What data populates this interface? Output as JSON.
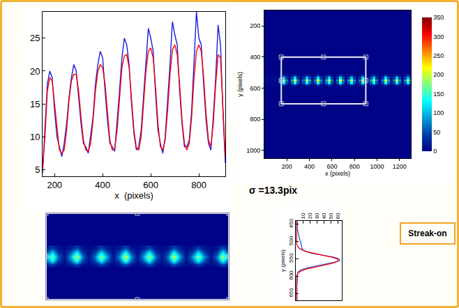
{
  "chart_data": [
    {
      "type": "line",
      "xlabel": "x  (pixels)",
      "x": [
        150,
        160,
        170,
        180,
        190,
        200,
        210,
        220,
        230,
        240,
        250,
        260,
        270,
        280,
        290,
        300,
        310,
        320,
        330,
        340,
        350,
        360,
        370,
        380,
        390,
        400,
        410,
        420,
        430,
        440,
        450,
        460,
        470,
        480,
        490,
        500,
        510,
        520,
        530,
        540,
        550,
        560,
        570,
        580,
        590,
        600,
        610,
        620,
        630,
        640,
        650,
        660,
        670,
        680,
        690,
        700,
        710,
        720,
        730,
        740,
        750,
        760,
        770,
        780,
        790,
        800,
        810,
        820,
        830,
        840,
        850,
        860,
        870,
        880,
        890,
        900,
        910
      ],
      "series": [
        {
          "color": "#1a1ae0",
          "values": [
            4.5,
            11,
            18,
            20,
            19,
            14,
            10,
            8.5,
            7,
            9,
            12,
            16,
            19,
            21,
            20,
            16,
            12,
            9,
            8.5,
            7.5,
            10,
            13,
            18,
            21,
            23,
            22,
            17,
            12.5,
            9,
            8.5,
            7.8,
            12,
            17,
            22,
            25,
            24,
            21,
            15,
            10.5,
            8,
            8.5,
            11,
            16,
            22,
            26.5,
            25,
            23,
            16.5,
            11,
            9,
            7.5,
            10,
            15,
            21,
            27.5,
            25.5,
            24,
            17,
            12,
            8.5,
            8.5,
            9.5,
            14,
            21,
            29,
            25,
            24,
            18,
            12.5,
            9,
            8,
            13,
            19,
            27,
            24,
            14,
            6
          ]
        },
        {
          "color": "#ff0000",
          "values": [
            5,
            10,
            17,
            19,
            18.5,
            15,
            11,
            8,
            7.5,
            8,
            11,
            15.5,
            18.5,
            19.5,
            19.5,
            17,
            13,
            9.5,
            8,
            7.8,
            9,
            12.5,
            17,
            20,
            21,
            20.5,
            18,
            13.5,
            9.5,
            8,
            8.2,
            11,
            16,
            20.5,
            22.3,
            22.5,
            20.5,
            16,
            11,
            8.3,
            8,
            10,
            15,
            20,
            23,
            23.5,
            22,
            17.5,
            12,
            8.5,
            8,
            9.5,
            14,
            19.5,
            23.2,
            24,
            22.5,
            18,
            12.5,
            9,
            8,
            9,
            13,
            19,
            23,
            24,
            23,
            19,
            13.5,
            9.5,
            8.5,
            12,
            18,
            22.5,
            22,
            15,
            7
          ]
        }
      ],
      "xlim": [
        150,
        910
      ],
      "xticks": [
        200,
        400,
        600,
        800
      ],
      "ylim": [
        4,
        29
      ],
      "yticks": [
        5,
        10,
        15,
        20,
        25
      ],
      "grid": false
    },
    {
      "type": "heatmap",
      "xlabel": "x (pixels)",
      "ylabel": "y (pixels)",
      "x": [
        0,
        25,
        50,
        75,
        100,
        125,
        150,
        175,
        200,
        225,
        250,
        275,
        300,
        325,
        350,
        375,
        400,
        425,
        450,
        475,
        500,
        525,
        550,
        575,
        600,
        625,
        650,
        675,
        700,
        725,
        750,
        775,
        800,
        825,
        850,
        875,
        900,
        925,
        950,
        975,
        1000,
        1025,
        1050,
        1075,
        1100,
        1125,
        1150,
        1175,
        1200,
        1225,
        1250,
        1275,
        1300,
        1325,
        1350
      ],
      "y": [
        520,
        535,
        550,
        565,
        580
      ],
      "z": [
        [
          5,
          6,
          4,
          7,
          5,
          6,
          14,
          38,
          12,
          6,
          16,
          45,
          13,
          5,
          12,
          40,
          18,
          7,
          15,
          48,
          14,
          6,
          18,
          42,
          12,
          5,
          13,
          46,
          16,
          6,
          14,
          36,
          13,
          7,
          12,
          44,
          15,
          5,
          17,
          40,
          12,
          6,
          14,
          47,
          18,
          7,
          13,
          39,
          14,
          5,
          15,
          35,
          12,
          6,
          5
        ],
        [
          6,
          8,
          5,
          7,
          9,
          8,
          40,
          105,
          35,
          10,
          50,
          120,
          38,
          9,
          35,
          110,
          52,
          11,
          45,
          125,
          40,
          10,
          55,
          115,
          35,
          9,
          38,
          120,
          48,
          10,
          42,
          108,
          40,
          11,
          35,
          118,
          45,
          9,
          50,
          110,
          38,
          10,
          40,
          122,
          50,
          11,
          36,
          112,
          42,
          9,
          45,
          105,
          36,
          8,
          6
        ],
        [
          7,
          9,
          6,
          8,
          10,
          12,
          85,
          175,
          70,
          14,
          90,
          200,
          75,
          12,
          70,
          185,
          95,
          15,
          80,
          210,
          85,
          13,
          95,
          190,
          70,
          14,
          75,
          205,
          90,
          12,
          85,
          180,
          80,
          15,
          70,
          195,
          85,
          13,
          90,
          185,
          75,
          12,
          80,
          200,
          90,
          14,
          75,
          190,
          80,
          12,
          85,
          180,
          70,
          10,
          8
        ],
        [
          7,
          6,
          8,
          9,
          7,
          10,
          55,
          130,
          45,
          12,
          60,
          140,
          50,
          10,
          48,
          125,
          62,
          11,
          52,
          145,
          58,
          12,
          62,
          130,
          45,
          10,
          50,
          140,
          58,
          12,
          55,
          128,
          52,
          11,
          45,
          135,
          55,
          10,
          60,
          125,
          48,
          12,
          52,
          138,
          60,
          11,
          48,
          130,
          50,
          10,
          56,
          122,
          44,
          9,
          7
        ],
        [
          4,
          5,
          6,
          4,
          5,
          7,
          12,
          32,
          10,
          5,
          14,
          38,
          11,
          6,
          10,
          34,
          15,
          5,
          13,
          40,
          12,
          6,
          15,
          36,
          10,
          5,
          11,
          39,
          14,
          6,
          12,
          30,
          11,
          5,
          10,
          37,
          13,
          6,
          14,
          33,
          10,
          5,
          12,
          40,
          15,
          6,
          11,
          32,
          12,
          5,
          13,
          30,
          10,
          5,
          4
        ]
      ],
      "color": "jet",
      "colorbar": {
        "range": [
          0,
          350
        ],
        "ticks": [
          0,
          50,
          100,
          150,
          200,
          250,
          300,
          350
        ]
      },
      "roi": {
        "x": [
          150,
          900
        ],
        "y": [
          400,
          700
        ]
      },
      "xlim": [
        0,
        1300
      ],
      "xticks": [
        200,
        400,
        600,
        800,
        1000,
        1200
      ],
      "ylim": [
        1050,
        100
      ],
      "yticks": [
        200,
        400,
        600,
        800,
        1000
      ]
    },
    {
      "type": "heatmap",
      "xlim": [
        150,
        900
      ],
      "ylim": [
        700,
        400
      ],
      "tick_labels": false
    },
    {
      "type": "line",
      "orientation": "horizontal",
      "ylabel": "y (pixels)",
      "y": [
        440,
        450,
        460,
        470,
        480,
        490,
        500,
        505,
        510,
        515,
        520,
        525,
        530,
        535,
        540,
        545,
        550,
        555,
        560,
        565,
        570,
        575,
        580,
        585,
        590,
        595,
        600,
        610,
        620,
        630,
        640,
        650,
        660,
        670
      ],
      "series": [
        {
          "color": "#3355dd",
          "values": [
            2,
            2.5,
            2,
            3,
            3.5,
            5,
            7,
            7.5,
            8,
            8.5,
            9,
            11,
            16,
            26,
            42,
            55,
            62,
            63,
            55,
            42,
            30,
            19,
            10,
            5,
            3,
            2.5,
            2,
            2.5,
            2,
            1.5,
            2,
            1.5,
            2,
            1.5
          ]
        },
        {
          "color": "#ff0000",
          "values": [
            1,
            1,
            1,
            1,
            1,
            1,
            1.1,
            1.3,
            1.8,
            3,
            5.5,
            10,
            18,
            28,
            40,
            52,
            59.5,
            61,
            57,
            48,
            36,
            24,
            14,
            7.5,
            3.6,
            2,
            1.4,
            1,
            1,
            1,
            1,
            1,
            1,
            1
          ]
        }
      ],
      "xlim": [
        0,
        66
      ],
      "xticks": [
        10,
        20,
        30,
        40,
        50,
        60
      ],
      "ylim": [
        670,
        440
      ],
      "yticks": [
        450,
        500,
        550,
        600,
        650
      ],
      "grid": false
    }
  ],
  "annotations": [
    "σ =13.3pix",
    "Streak-on"
  ]
}
